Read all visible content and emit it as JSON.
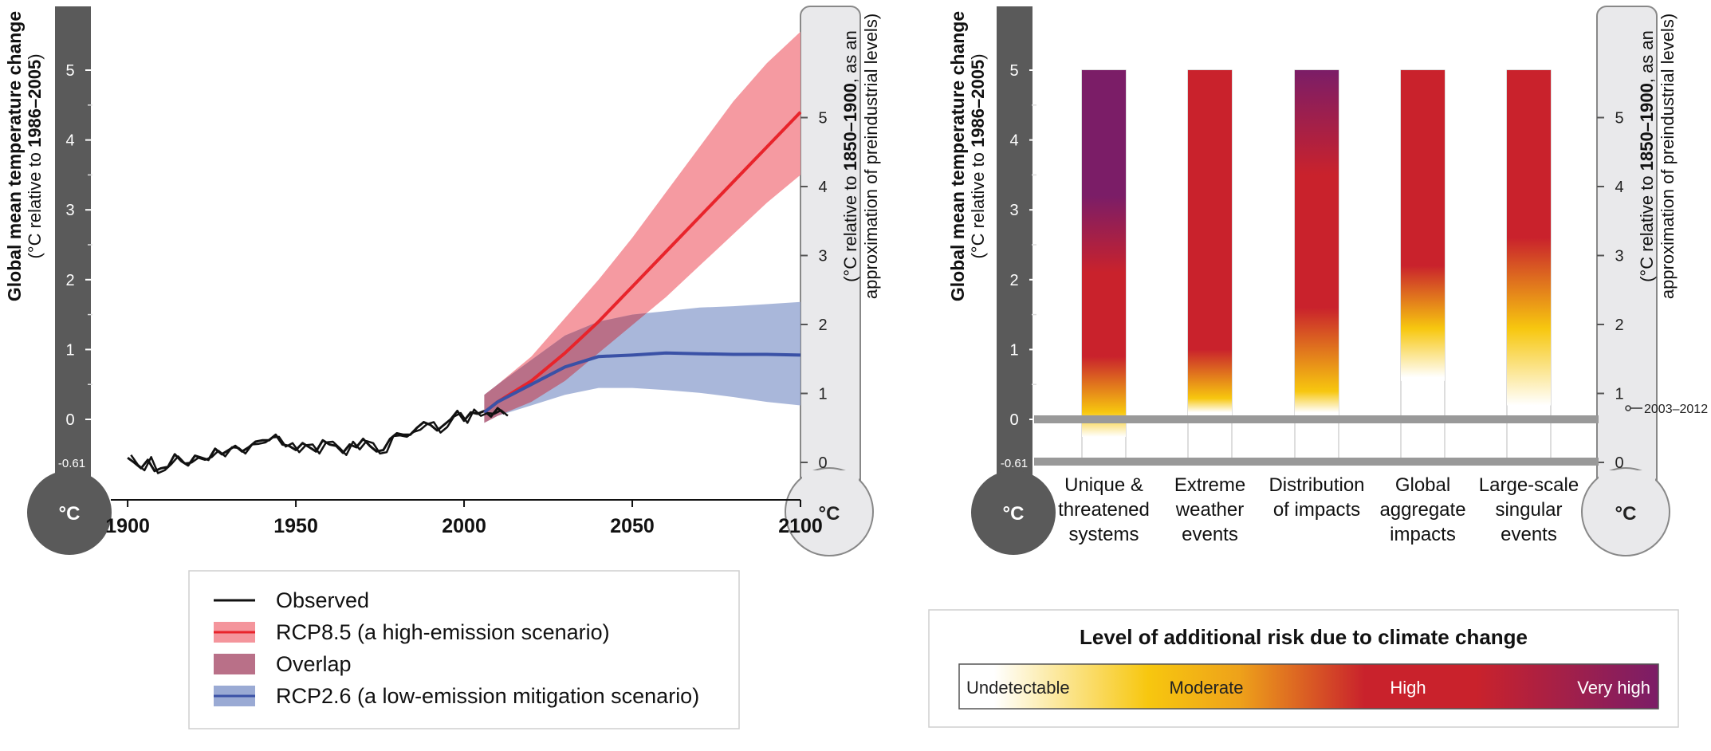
{
  "left_thermometer": {
    "unit_symbol": "°C",
    "title_bold": "Global mean temperature change",
    "title_sub_prefix": "(°C relative to ",
    "title_sub_bold": "1986–2005",
    "title_sub_suffix": ")",
    "ticks": [
      "5",
      "4",
      "3",
      "2",
      "1",
      "0"
    ],
    "baseline_label": "-0.61"
  },
  "right_thermometer": {
    "unit_symbol": "°C",
    "title_line1_prefix": "(°C relative to ",
    "title_line1_bold": "1850–1900",
    "title_line1_suffix": ", as an",
    "title_line2": "approximation of preindustrial levels)",
    "ticks": [
      "5",
      "4",
      "3",
      "2",
      "1",
      "0"
    ]
  },
  "legend": {
    "items": [
      {
        "label": "Observed",
        "color": "#111111",
        "kind": "line"
      },
      {
        "label": "RCP8.5 (a high-emission scenario)",
        "color": "#e8242b",
        "fill": "#f4959c",
        "kind": "band-line"
      },
      {
        "label": "Overlap",
        "color": "#b97088",
        "kind": "band"
      },
      {
        "label": "RCP2.6 (a low-emission mitigation scenario)",
        "color": "#3a51a6",
        "fill": "#9aaad4",
        "kind": "band-line"
      }
    ]
  },
  "risk_panel": {
    "year_marker": "2003–2012",
    "categories": [
      "Unique & threatened systems",
      "Extreme weather events",
      "Distribution of impacts",
      "Global aggregate impacts",
      "Large-scale singular events"
    ],
    "category_lines": [
      [
        "Unique &",
        "threatened",
        "systems"
      ],
      [
        "Extreme",
        "weather",
        "events"
      ],
      [
        "Distribution",
        "of impacts"
      ],
      [
        "Global",
        "aggregate",
        "impacts"
      ],
      [
        "Large-scale",
        "singular",
        "events"
      ]
    ],
    "scale_title": "Level of additional risk due to climate change",
    "scale_levels": [
      "Undetectable",
      "Moderate",
      "High",
      "Very high"
    ],
    "colors": {
      "undetectable": "#ffffff",
      "moderate": "#f7c70f",
      "high": "#c9222c",
      "very_high": "#7b1d67"
    }
  },
  "chart_data": [
    {
      "type": "line",
      "x_ticks": [
        1900,
        1950,
        2000,
        2050,
        2100
      ],
      "xlim": [
        1895,
        2100
      ],
      "ylim": [
        -0.61,
        5.5
      ],
      "ylabel": "Global mean temperature change (°C relative to 1986–2005)",
      "y2label": "(°C relative to 1850–1900, as an approximation of preindustrial levels)",
      "y_ticks": [
        0,
        1,
        2,
        3,
        4,
        5
      ],
      "y2_ticks": [
        0,
        1,
        2,
        3,
        4,
        5
      ],
      "series": [
        {
          "name": "Observed",
          "color": "#111111",
          "x": [
            1900,
            1902,
            1904,
            1906,
            1908,
            1910,
            1912,
            1914,
            1916,
            1918,
            1920,
            1922,
            1924,
            1926,
            1928,
            1930,
            1932,
            1934,
            1936,
            1938,
            1940,
            1942,
            1944,
            1946,
            1948,
            1950,
            1952,
            1954,
            1956,
            1958,
            1960,
            1962,
            1964,
            1966,
            1968,
            1970,
            1972,
            1974,
            1976,
            1978,
            1980,
            1982,
            1984,
            1986,
            1988,
            1990,
            1992,
            1994,
            1996,
            1998,
            2000,
            2002,
            2004,
            2006,
            2008,
            2010,
            2012
          ],
          "y": [
            -0.55,
            -0.62,
            -0.7,
            -0.58,
            -0.74,
            -0.7,
            -0.68,
            -0.5,
            -0.6,
            -0.66,
            -0.52,
            -0.55,
            -0.58,
            -0.42,
            -0.5,
            -0.44,
            -0.38,
            -0.46,
            -0.4,
            -0.32,
            -0.3,
            -0.3,
            -0.22,
            -0.36,
            -0.38,
            -0.44,
            -0.34,
            -0.4,
            -0.46,
            -0.3,
            -0.36,
            -0.38,
            -0.48,
            -0.36,
            -0.4,
            -0.28,
            -0.38,
            -0.46,
            -0.44,
            -0.28,
            -0.2,
            -0.22,
            -0.22,
            -0.12,
            -0.04,
            -0.08,
            -0.16,
            -0.08,
            0.0,
            0.12,
            -0.02,
            0.1,
            0.08,
            0.12,
            0.04,
            0.16,
            0.08
          ]
        },
        {
          "name": "RCP8.5 (a high-emission scenario)",
          "color": "#e8242b",
          "x": [
            2006,
            2010,
            2020,
            2030,
            2040,
            2050,
            2060,
            2070,
            2080,
            2090,
            2100
          ],
          "y": [
            0.1,
            0.25,
            0.55,
            0.95,
            1.4,
            1.9,
            2.4,
            2.9,
            3.4,
            3.9,
            4.4
          ],
          "low": [
            -0.05,
            0.05,
            0.25,
            0.55,
            0.95,
            1.35,
            1.75,
            2.2,
            2.65,
            3.1,
            3.5
          ],
          "high": [
            0.35,
            0.5,
            0.9,
            1.45,
            2.0,
            2.6,
            3.25,
            3.9,
            4.55,
            5.1,
            5.55
          ]
        },
        {
          "name": "RCP2.6 (a low-emission mitigation scenario)",
          "color": "#3a51a6",
          "x": [
            2006,
            2010,
            2020,
            2030,
            2040,
            2050,
            2060,
            2070,
            2080,
            2090,
            2100
          ],
          "y": [
            0.1,
            0.25,
            0.5,
            0.75,
            0.9,
            0.92,
            0.95,
            0.94,
            0.93,
            0.93,
            0.92
          ],
          "low": [
            -0.05,
            0.05,
            0.2,
            0.35,
            0.45,
            0.45,
            0.42,
            0.38,
            0.32,
            0.25,
            0.2
          ],
          "high": [
            0.35,
            0.5,
            0.85,
            1.2,
            1.4,
            1.5,
            1.55,
            1.6,
            1.62,
            1.65,
            1.68
          ]
        }
      ]
    },
    {
      "type": "heatmap",
      "categories": [
        "Unique & threatened systems",
        "Extreme weather events",
        "Distribution of impacts",
        "Global aggregate impacts",
        "Large-scale singular events"
      ],
      "ylim": [
        -0.61,
        5.5
      ],
      "ylabel": "Global mean temperature change (°C relative to 1986–2005)",
      "bar_range": [
        [
          -0.25,
          5
        ],
        [
          0.05,
          5
        ],
        [
          0.05,
          5
        ],
        [
          0.55,
          5
        ],
        [
          0.2,
          5
        ]
      ],
      "risk_levels": [
        "Undetectable",
        "Moderate",
        "High",
        "Very high"
      ],
      "reference_lines": [
        0,
        -0.61
      ]
    }
  ]
}
